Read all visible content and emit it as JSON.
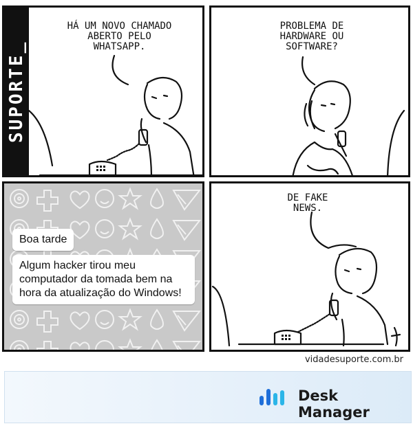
{
  "sidebar_brand": "SUPORTE_",
  "panels": [
    {
      "speech": "HÁ UM NOVO CHAMADO\nABERTO PELO\nWHATSAPP."
    },
    {
      "speech": "PROBLEMA DE\nHARDWARE OU\nSOFTWARE?"
    },
    {
      "messages": [
        "Boa tarde",
        "Algum hacker tirou meu computador da tomada bem na hora da atualização do Windows!"
      ]
    },
    {
      "speech": "DE FAKE\nNEWS."
    }
  ],
  "site": "vidadesuporte.com.br",
  "footer": {
    "brand": "Desk Manager",
    "logo_colors": [
      "#1e6fd9",
      "#2bb5e8"
    ]
  },
  "icons": [
    "spiral-icon",
    "cross-icon",
    "heart-icon",
    "smiley-icon",
    "star-icon",
    "drop-icon",
    "feather-icon"
  ]
}
